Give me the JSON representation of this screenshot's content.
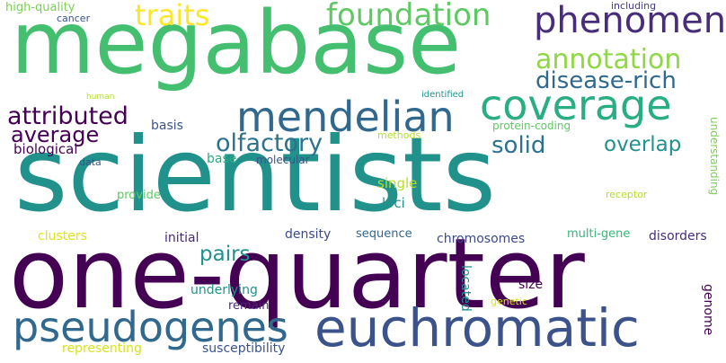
{
  "words": [
    {
      "text": "megabase",
      "color": "#44bf70"
    },
    {
      "text": "scientists",
      "color": "#21918c"
    },
    {
      "text": "one-quarter",
      "color": "#440154"
    },
    {
      "text": "euchromatic",
      "color": "#3b528b"
    },
    {
      "text": "pseudogenes",
      "color": "#31688e"
    },
    {
      "text": "mendelian",
      "color": "#31688e"
    },
    {
      "text": "coverage",
      "color": "#28ae80"
    },
    {
      "text": "phenomena",
      "color": "#472d7b"
    },
    {
      "text": "foundation",
      "color": "#5ec962"
    },
    {
      "text": "annotation",
      "color": "#8fd744"
    },
    {
      "text": "disease-rich",
      "color": "#31688e"
    },
    {
      "text": "traits",
      "color": "#fde725"
    },
    {
      "text": "attributed",
      "color": "#440154"
    },
    {
      "text": "average",
      "color": "#440154"
    },
    {
      "text": "olfactory",
      "color": "#2c728e"
    },
    {
      "text": "solid",
      "color": "#2c728e"
    },
    {
      "text": "overlap",
      "color": "#21918c"
    },
    {
      "text": "pairs",
      "color": "#21918c"
    },
    {
      "text": "high-quality",
      "color": "#7ad151"
    },
    {
      "text": "cancer",
      "color": "#3b528b"
    },
    {
      "text": "including",
      "color": "#443983"
    },
    {
      "text": "human",
      "color": "#b5de2b"
    },
    {
      "text": "identified",
      "color": "#21918c"
    },
    {
      "text": "protein-coding",
      "color": "#5ec962"
    },
    {
      "text": "methods",
      "color": "#b5de2b"
    },
    {
      "text": "basis",
      "color": "#3b528b"
    },
    {
      "text": "biological",
      "color": "#440154"
    },
    {
      "text": "data",
      "color": "#3b528b"
    },
    {
      "text": "base",
      "color": "#28ae80"
    },
    {
      "text": "molecular",
      "color": "#3b528b"
    },
    {
      "text": "single",
      "color": "#b5de2b"
    },
    {
      "text": "loci",
      "color": "#21918c"
    },
    {
      "text": "provide",
      "color": "#5ec962"
    },
    {
      "text": "receptor",
      "color": "#b5de2b"
    },
    {
      "text": "understanding",
      "color": "#7ad151"
    },
    {
      "text": "clusters",
      "color": "#dde318"
    },
    {
      "text": "initial",
      "color": "#482878"
    },
    {
      "text": "density",
      "color": "#3e4989"
    },
    {
      "text": "sequence",
      "color": "#31688e"
    },
    {
      "text": "chromosomes",
      "color": "#3e4989"
    },
    {
      "text": "multi-gene",
      "color": "#35b779"
    },
    {
      "text": "disorders",
      "color": "#472d7b"
    },
    {
      "text": "size",
      "color": "#440154"
    },
    {
      "text": "underlying",
      "color": "#21918c"
    },
    {
      "text": "remain",
      "color": "#482878"
    },
    {
      "text": "located",
      "color": "#21918c"
    },
    {
      "text": "genetic",
      "color": "#dde318"
    },
    {
      "text": "genome",
      "color": "#440154"
    },
    {
      "text": "representing",
      "color": "#d8e219"
    },
    {
      "text": "susceptibility",
      "color": "#3b528b"
    }
  ]
}
